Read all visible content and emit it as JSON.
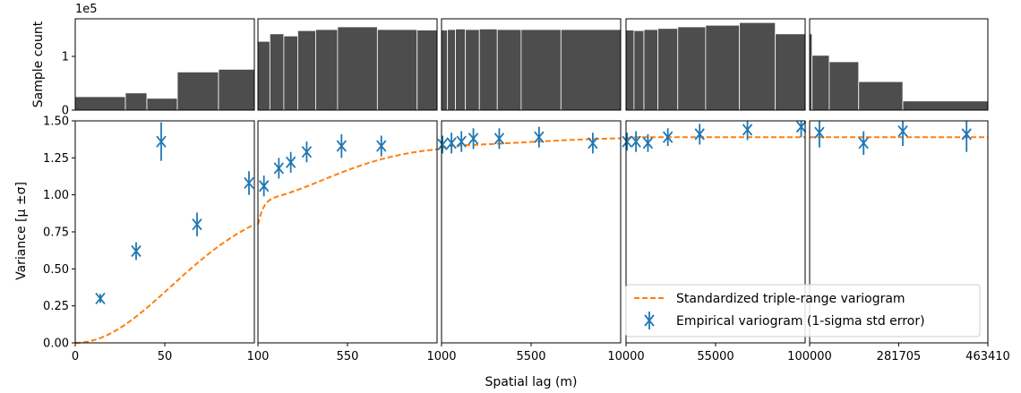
{
  "chart_data": {
    "type": "composite",
    "xlabel": "Spatial lag (m)",
    "hist_ylabel": "Sample count",
    "hist_multiplier": "1e5",
    "var_ylabel": "Variance [μ ±σ]",
    "hist_yticks": [
      0,
      1
    ],
    "var_yticks": [
      "0.00",
      "0.25",
      "0.50",
      "0.75",
      "1.00",
      "1.25",
      "1.50"
    ],
    "var_ylim": [
      0,
      1.5
    ],
    "hist_ylim": [
      0,
      1.7
    ],
    "colors": {
      "empirical": "#1f77b4",
      "model": "#ff7f0e",
      "bars": "#4d4d4d"
    },
    "legend": {
      "placement": "lower-right",
      "model_label": "Standardized triple-range variogram",
      "empirical_label": "Empirical variogram (1-sigma std error)"
    },
    "panels": [
      {
        "xlim": [
          0,
          100
        ],
        "ticks": [
          {
            "v": 0,
            "label": "0"
          },
          {
            "v": 50,
            "label": "50"
          }
        ],
        "bins": [
          {
            "x0": 0,
            "x1": 28,
            "c": 0.25
          },
          {
            "x0": 28,
            "x1": 40,
            "c": 0.32
          },
          {
            "x0": 40,
            "x1": 57,
            "c": 0.22
          },
          {
            "x0": 57,
            "x1": 80,
            "c": 0.71
          },
          {
            "x0": 80,
            "x1": 100,
            "c": 0.76
          }
        ],
        "points": [
          {
            "x": 14,
            "y": 0.3,
            "e": 0.03
          },
          {
            "x": 34,
            "y": 0.62,
            "e": 0.06
          },
          {
            "x": 48,
            "y": 1.36,
            "e": 0.13
          },
          {
            "x": 68,
            "y": 0.8,
            "e": 0.08
          },
          {
            "x": 97,
            "y": 1.08,
            "e": 0.08
          }
        ]
      },
      {
        "xlim": [
          100,
          1000
        ],
        "ticks": [
          {
            "v": 100,
            "label": "100"
          },
          {
            "v": 550,
            "label": "550"
          }
        ],
        "bins": [
          {
            "x0": 100,
            "x1": 160,
            "c": 1.28
          },
          {
            "x0": 160,
            "x1": 230,
            "c": 1.42
          },
          {
            "x0": 230,
            "x1": 300,
            "c": 1.38
          },
          {
            "x0": 300,
            "x1": 390,
            "c": 1.48
          },
          {
            "x0": 390,
            "x1": 500,
            "c": 1.5
          },
          {
            "x0": 500,
            "x1": 700,
            "c": 1.55
          },
          {
            "x0": 700,
            "x1": 900,
            "c": 1.5
          },
          {
            "x0": 900,
            "x1": 1000,
            "c": 1.49
          }
        ],
        "points": [
          {
            "x": 130,
            "y": 1.06,
            "e": 0.07
          },
          {
            "x": 205,
            "y": 1.18,
            "e": 0.07
          },
          {
            "x": 265,
            "y": 1.22,
            "e": 0.07
          },
          {
            "x": 345,
            "y": 1.29,
            "e": 0.07
          },
          {
            "x": 520,
            "y": 1.33,
            "e": 0.08
          },
          {
            "x": 720,
            "y": 1.33,
            "e": 0.07
          }
        ]
      },
      {
        "xlim": [
          1000,
          10000
        ],
        "ticks": [
          {
            "v": 1000,
            "label": "1000"
          },
          {
            "v": 5500,
            "label": "5500"
          }
        ],
        "bins": [
          {
            "x0": 1000,
            "x1": 1300,
            "c": 1.49
          },
          {
            "x0": 1300,
            "x1": 1700,
            "c": 1.5
          },
          {
            "x0": 1700,
            "x1": 2200,
            "c": 1.51
          },
          {
            "x0": 2200,
            "x1": 2900,
            "c": 1.5
          },
          {
            "x0": 2900,
            "x1": 3800,
            "c": 1.51
          },
          {
            "x0": 3800,
            "x1": 5000,
            "c": 1.5
          },
          {
            "x0": 5000,
            "x1": 7000,
            "c": 1.5
          },
          {
            "x0": 7000,
            "x1": 10000,
            "c": 1.5
          }
        ],
        "points": [
          {
            "x": 1050,
            "y": 1.34,
            "e": 0.06
          },
          {
            "x": 1500,
            "y": 1.35,
            "e": 0.07
          },
          {
            "x": 2000,
            "y": 1.36,
            "e": 0.07
          },
          {
            "x": 2600,
            "y": 1.38,
            "e": 0.07
          },
          {
            "x": 3900,
            "y": 1.38,
            "e": 0.07
          },
          {
            "x": 5900,
            "y": 1.39,
            "e": 0.07
          },
          {
            "x": 8600,
            "y": 1.35,
            "e": 0.07
          }
        ]
      },
      {
        "xlim": [
          10000,
          100000
        ],
        "ticks": [
          {
            "v": 10000,
            "label": "10000"
          },
          {
            "v": 55000,
            "label": "55000"
          }
        ],
        "bins": [
          {
            "x0": 10000,
            "x1": 14000,
            "c": 1.49
          },
          {
            "x0": 14000,
            "x1": 19000,
            "c": 1.48
          },
          {
            "x0": 19000,
            "x1": 26000,
            "c": 1.5
          },
          {
            "x0": 26000,
            "x1": 36000,
            "c": 1.52
          },
          {
            "x0": 36000,
            "x1": 50000,
            "c": 1.55
          },
          {
            "x0": 50000,
            "x1": 67000,
            "c": 1.58
          },
          {
            "x0": 67000,
            "x1": 85000,
            "c": 1.63
          },
          {
            "x0": 85000,
            "x1": 100000,
            "c": 1.42
          }
        ],
        "points": [
          {
            "x": 10500,
            "y": 1.36,
            "e": 0.06
          },
          {
            "x": 15000,
            "y": 1.36,
            "e": 0.07
          },
          {
            "x": 21000,
            "y": 1.35,
            "e": 0.06
          },
          {
            "x": 31000,
            "y": 1.39,
            "e": 0.06
          },
          {
            "x": 47000,
            "y": 1.41,
            "e": 0.07
          },
          {
            "x": 71000,
            "y": 1.44,
            "e": 0.07
          },
          {
            "x": 98000,
            "y": 1.46,
            "e": 0.07
          }
        ]
      },
      {
        "xlim": [
          100000,
          463410
        ],
        "ticks": [
          {
            "v": 100000,
            "label": "100000"
          },
          {
            "v": 281705,
            "label": "281705"
          },
          {
            "v": 463410,
            "label": "463410"
          }
        ],
        "bins": [
          {
            "x0": 100000,
            "x1": 105000,
            "c": 1.42
          },
          {
            "x0": 105000,
            "x1": 140000,
            "c": 1.02
          },
          {
            "x0": 140000,
            "x1": 200000,
            "c": 0.9
          },
          {
            "x0": 200000,
            "x1": 290000,
            "c": 0.53
          },
          {
            "x0": 290000,
            "x1": 463410,
            "c": 0.17
          }
        ],
        "points": [
          {
            "x": 120000,
            "y": 1.42,
            "e": 0.1
          },
          {
            "x": 210000,
            "y": 1.35,
            "e": 0.08
          },
          {
            "x": 290000,
            "y": 1.43,
            "e": 0.1
          },
          {
            "x": 420000,
            "y": 1.41,
            "e": 0.12
          }
        ]
      }
    ],
    "model": {
      "components": [
        {
          "sill": 0.95,
          "range": 75
        },
        {
          "sill": 0.38,
          "range": 600
        },
        {
          "sill": 0.06,
          "range": 7000
        }
      ]
    }
  }
}
